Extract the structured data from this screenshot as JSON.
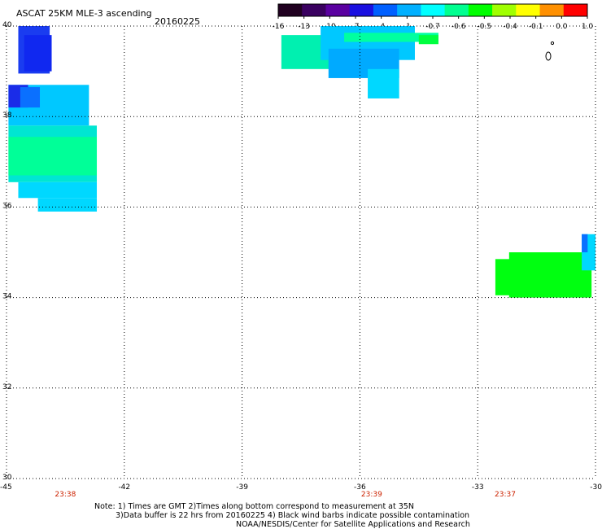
{
  "header": {
    "title": "ASCAT 25KM MLE-3 ascending",
    "date": "20160225"
  },
  "colorbar": {
    "tick_labels": [
      "-16",
      "-13",
      "-10",
      "-7",
      "-4",
      "-1",
      "-0.7",
      "-0.6",
      "-0.5",
      "-0.4",
      "-0.1",
      "0.0",
      "1.0"
    ],
    "colors": [
      "#200020",
      "#3a0060",
      "#5a00a0",
      "#1a10e0",
      "#0060ff",
      "#00b0ff",
      "#00ffff",
      "#00ff90",
      "#00ff00",
      "#a0ff00",
      "#ffff00",
      "#ff9000",
      "#ff0000"
    ]
  },
  "map": {
    "x_ticks": [
      {
        "value": -45,
        "label": "-45"
      },
      {
        "value": -42,
        "label": "-42"
      },
      {
        "value": -39,
        "label": "-39"
      },
      {
        "value": -36,
        "label": "-36"
      },
      {
        "value": -33,
        "label": "-33"
      },
      {
        "value": -30,
        "label": "-30"
      }
    ],
    "y_ticks": [
      {
        "value": 40,
        "label": "40"
      },
      {
        "value": 38,
        "label": "38"
      },
      {
        "value": 36,
        "label": "36"
      },
      {
        "value": 34,
        "label": "34"
      },
      {
        "value": 32,
        "label": "32"
      },
      {
        "value": 30,
        "label": "30"
      }
    ],
    "x_range": [
      -45,
      -30
    ],
    "y_range": [
      30,
      40
    ],
    "gridlines": "dotted",
    "pass_times": [
      {
        "lon": -43.5,
        "label": "23:38"
      },
      {
        "lon": -35.7,
        "label": "23:39"
      },
      {
        "lon": -32.3,
        "label": "23:37"
      }
    ],
    "swath_blocks": [
      {
        "lon0": -44.7,
        "lat0": 40.0,
        "lon1": -43.9,
        "lat1": 38.95,
        "color": "#1a3cf0"
      },
      {
        "lon0": -44.55,
        "lat0": 39.8,
        "lon1": -43.85,
        "lat1": 39.0,
        "color": "#1028f0"
      },
      {
        "lon0": -44.95,
        "lat0": 38.7,
        "lon1": -42.9,
        "lat1": 37.8,
        "color": "#00c8ff"
      },
      {
        "lon0": -44.95,
        "lat0": 38.7,
        "lon1": -44.45,
        "lat1": 38.2,
        "color": "#1a2ce8"
      },
      {
        "lon0": -44.65,
        "lat0": 38.65,
        "lon1": -44.15,
        "lat1": 38.2,
        "color": "#0a70ff"
      },
      {
        "lon0": -44.95,
        "lat0": 37.8,
        "lon1": -42.7,
        "lat1": 36.55,
        "color": "#00e6d2"
      },
      {
        "lon0": -44.95,
        "lat0": 37.55,
        "lon1": -42.7,
        "lat1": 36.7,
        "color": "#00ff98"
      },
      {
        "lon0": -44.7,
        "lat0": 36.55,
        "lon1": -42.7,
        "lat1": 36.2,
        "color": "#00d8ff"
      },
      {
        "lon0": -44.2,
        "lat0": 36.2,
        "lon1": -42.7,
        "lat1": 35.9,
        "color": "#00d8ff"
      },
      {
        "lon0": -38.0,
        "lat0": 39.8,
        "lon1": -36.6,
        "lat1": 39.05,
        "color": "#00f0b0"
      },
      {
        "lon0": -37.0,
        "lat0": 40.0,
        "lon1": -34.6,
        "lat1": 39.25,
        "color": "#00c8ff"
      },
      {
        "lon0": -36.8,
        "lat0": 39.5,
        "lon1": -35.0,
        "lat1": 38.85,
        "color": "#00aaff"
      },
      {
        "lon0": -35.8,
        "lat0": 39.05,
        "lon1": -35.0,
        "lat1": 38.4,
        "color": "#00d8ff"
      },
      {
        "lon0": -36.4,
        "lat0": 39.85,
        "lon1": -34.0,
        "lat1": 39.65,
        "color": "#00ffa0"
      },
      {
        "lon0": -34.5,
        "lat0": 39.8,
        "lon1": -34.0,
        "lat1": 39.6,
        "color": "#00ff40"
      },
      {
        "lon0": -32.2,
        "lat0": 35.0,
        "lon1": -30.1,
        "lat1": 34.0,
        "color": "#00ff10"
      },
      {
        "lon0": -32.55,
        "lat0": 34.85,
        "lon1": -31.9,
        "lat1": 34.05,
        "color": "#00ff10"
      },
      {
        "lon0": -30.35,
        "lat0": 35.4,
        "lon1": -30.0,
        "lat1": 34.6,
        "color": "#00d8ff"
      },
      {
        "lon0": -30.35,
        "lat0": 35.4,
        "lon1": -30.2,
        "lat1": 35.0,
        "color": "#0a70ff"
      }
    ]
  },
  "notes": {
    "line1": "Note: 1) Times are GMT 2)Times along bottom correspond to measurement at 35N",
    "line2": "3)Data buffer is 22 hrs from 20160225 4) Black wind barbs indicate possible contamination",
    "credit": "NOAA/NESDIS/Center for Satellite Applications and Research"
  }
}
